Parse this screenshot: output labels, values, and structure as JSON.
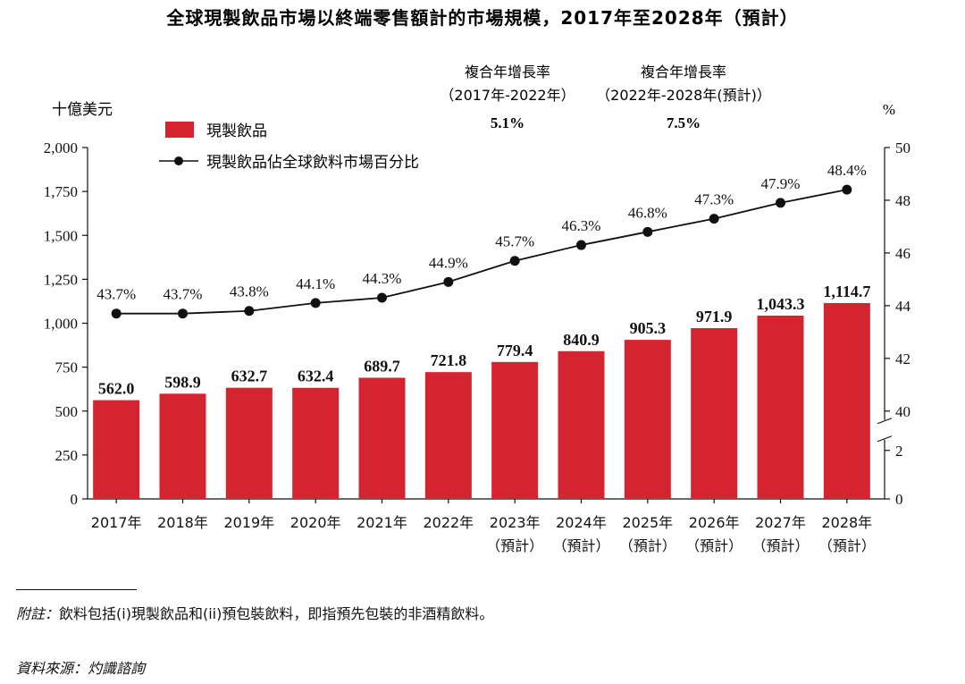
{
  "title": "全球現製飲品市場以終端零售額計的市場規模，2017年至2028年（預計）",
  "colors": {
    "bar": "#d42430",
    "line": "#111111"
  },
  "chart_data": {
    "type": "bar",
    "categories": [
      "2017年",
      "2018年",
      "2019年",
      "2020年",
      "2021年",
      "2022年",
      "2023年",
      "2024年",
      "2025年",
      "2026年",
      "2027年",
      "2028年"
    ],
    "category_sublabels": [
      "",
      "",
      "",
      "",
      "",
      "",
      "（預計）",
      "（預計）",
      "（預計）",
      "（預計）",
      "（預計）",
      "（預計）"
    ],
    "series": [
      {
        "name": "現製飲品",
        "type": "bar",
        "axis": "left",
        "values": [
          562.0,
          598.9,
          632.7,
          632.4,
          689.7,
          721.8,
          779.4,
          840.9,
          905.3,
          971.9,
          1043.3,
          1114.7
        ],
        "labels": [
          "562.0",
          "598.9",
          "632.7",
          "632.4",
          "689.7",
          "721.8",
          "779.4",
          "840.9",
          "905.3",
          "971.9",
          "1,043.3",
          "1,114.7"
        ]
      },
      {
        "name": "現製飲品佔全球飲料市場百分比",
        "type": "line",
        "axis": "right",
        "values": [
          43.7,
          43.7,
          43.8,
          44.1,
          44.3,
          44.9,
          45.7,
          46.3,
          46.8,
          47.3,
          47.9,
          48.4
        ],
        "labels": [
          "43.7%",
          "43.7%",
          "43.8%",
          "44.1%",
          "44.3%",
          "44.9%",
          "45.7%",
          "46.3%",
          "46.8%",
          "47.3%",
          "47.9%",
          "48.4%"
        ]
      }
    ],
    "ylabel": "十億美元",
    "ylim": [
      0,
      2000
    ],
    "yticks": [
      "0",
      "250",
      "500",
      "750",
      "1,000",
      "1,250",
      "1,500",
      "1,750",
      "2,000"
    ],
    "ylabel_right": "%",
    "yticks_right": [
      "0",
      "2",
      "40",
      "42",
      "44",
      "46",
      "48",
      "50"
    ],
    "right_axis_break": true,
    "cagr": [
      {
        "title": "複合年增長率",
        "period": "（2017年-2022年）",
        "value": "5.1%"
      },
      {
        "title": "複合年增長率",
        "period": "（2022年-2028年(預計)）",
        "value": "7.5%"
      }
    ],
    "legend_position": "top-left"
  },
  "notes": {
    "note_label": "附註：",
    "note_text": "飲料包括(i)現製飲品和(ii)預包裝飲料，即指預先包裝的非酒精飲料。",
    "source": "資料來源：灼識諮詢"
  }
}
